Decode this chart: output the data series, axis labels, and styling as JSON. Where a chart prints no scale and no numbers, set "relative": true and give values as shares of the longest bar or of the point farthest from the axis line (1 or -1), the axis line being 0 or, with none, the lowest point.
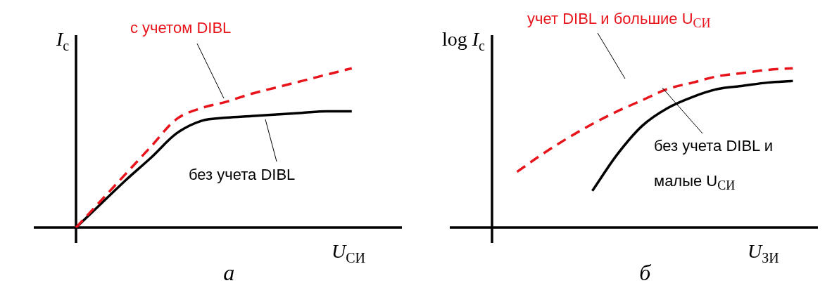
{
  "chart_data": [
    {
      "type": "line",
      "title": "а",
      "relative": true,
      "legend": false,
      "xlabel": "U$_{СИ}$",
      "ylabel": "I$_{c}$",
      "categories": [
        null,
        null,
        null,
        null,
        null,
        null,
        null,
        null,
        null,
        null,
        null,
        null,
        null,
        null
      ],
      "series": [
        {
          "color": "#e8141c",
          "line_style": "dashed",
          "values": [
            0,
            0.17,
            0.34,
            0.51,
            0.68,
            0.75,
            0.79,
            0.84,
            0.88,
            0.92,
            0.96,
            1,
            null,
            null
          ]
        },
        {
          "color": "#000000",
          "line_style": "solid",
          "values": [
            0,
            0.15,
            0.3,
            0.44,
            0.59,
            0.67,
            0.69,
            0.7,
            0.71,
            0.72,
            0.73,
            0.73,
            null,
            null
          ]
        }
      ],
      "annotations": [
        "с учетом DIBL",
        "без учета DIBL"
      ]
    },
    {
      "type": "line",
      "title": "б",
      "relative": true,
      "legend": false,
      "xlabel": "U$_{ЗИ}$",
      "ylabel": "log I$_{c}$",
      "categories": [
        null,
        null,
        null,
        null,
        null,
        null,
        null,
        null,
        null,
        null,
        null,
        null,
        null,
        null
      ],
      "series": [
        {
          "color": "#e8141c",
          "line_style": "dashed",
          "values": [
            null,
            0.35,
            0.46,
            0.56,
            0.65,
            0.73,
            0.8,
            0.87,
            0.91,
            0.95,
            0.97,
            0.99,
            1,
            null
          ]
        },
        {
          "color": "#000000",
          "line_style": "solid",
          "values": [
            null,
            null,
            null,
            null,
            0.23,
            0.46,
            0.64,
            0.75,
            0.82,
            0.87,
            0.89,
            0.91,
            0.92,
            null
          ]
        }
      ],
      "annotations": [
        "учет DIBL и большие U$_{СИ}$",
        "без учета DIBL и малые U$_{СИ}$"
      ]
    }
  ]
}
